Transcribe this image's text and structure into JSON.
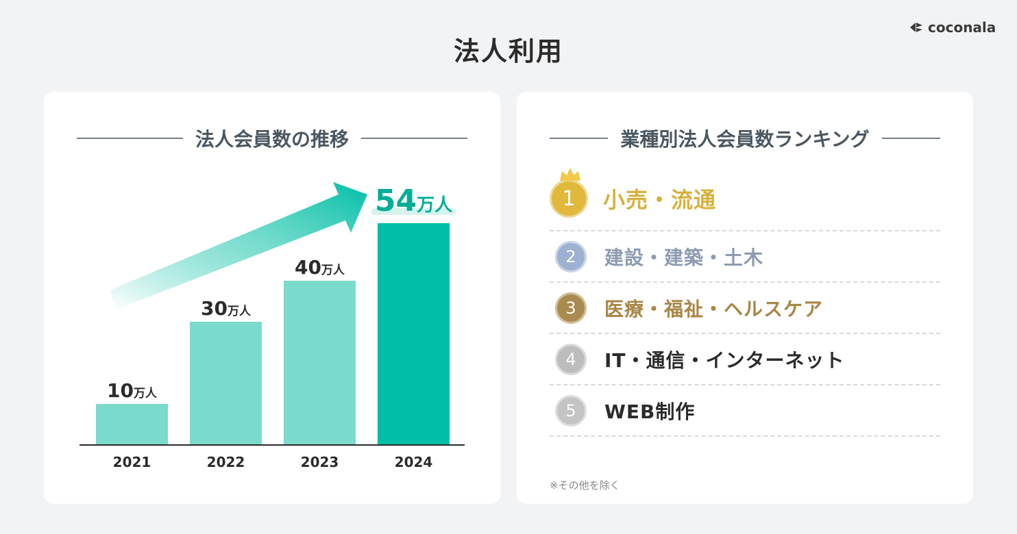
{
  "page": {
    "title": "法人利用",
    "logo_text": "coconala"
  },
  "left_panel": {
    "heading": "法人会員数の推移"
  },
  "right_panel": {
    "heading": "業種別法人会員数ランキング",
    "footnote": "※その他を除く",
    "ranking": [
      {
        "rank": "1",
        "name": "小売・流通",
        "color": "#d8b13c"
      },
      {
        "rank": "2",
        "name": "建設・建築・土木",
        "color": "#8d9ab0"
      },
      {
        "rank": "3",
        "name": "医療・福祉・ヘルスケア",
        "color": "#a88645"
      },
      {
        "rank": "4",
        "name": "IT・通信・インターネット",
        "color": "#2b2b2b"
      },
      {
        "rank": "5",
        "name": "WEB制作",
        "color": "#2b2b2b"
      }
    ],
    "medal_colors": [
      "#e0b83c",
      "#9db1d2",
      "#a98b4f",
      "#bdbdbd",
      "#c4c4c4"
    ]
  },
  "chart_data": {
    "type": "bar",
    "title": "法人会員数の推移",
    "categories": [
      "2021",
      "2022",
      "2023",
      "2024"
    ],
    "values": [
      10,
      30,
      40,
      54
    ],
    "unit": "万人",
    "ylim": [
      0,
      60
    ],
    "xlabel": "",
    "ylabel": "",
    "colors": [
      "#7adacb",
      "#7adacb",
      "#7adacb",
      "#00bfa8"
    ],
    "highlight_label_color": "#00ae97",
    "label_color": "#2b2b2b"
  }
}
